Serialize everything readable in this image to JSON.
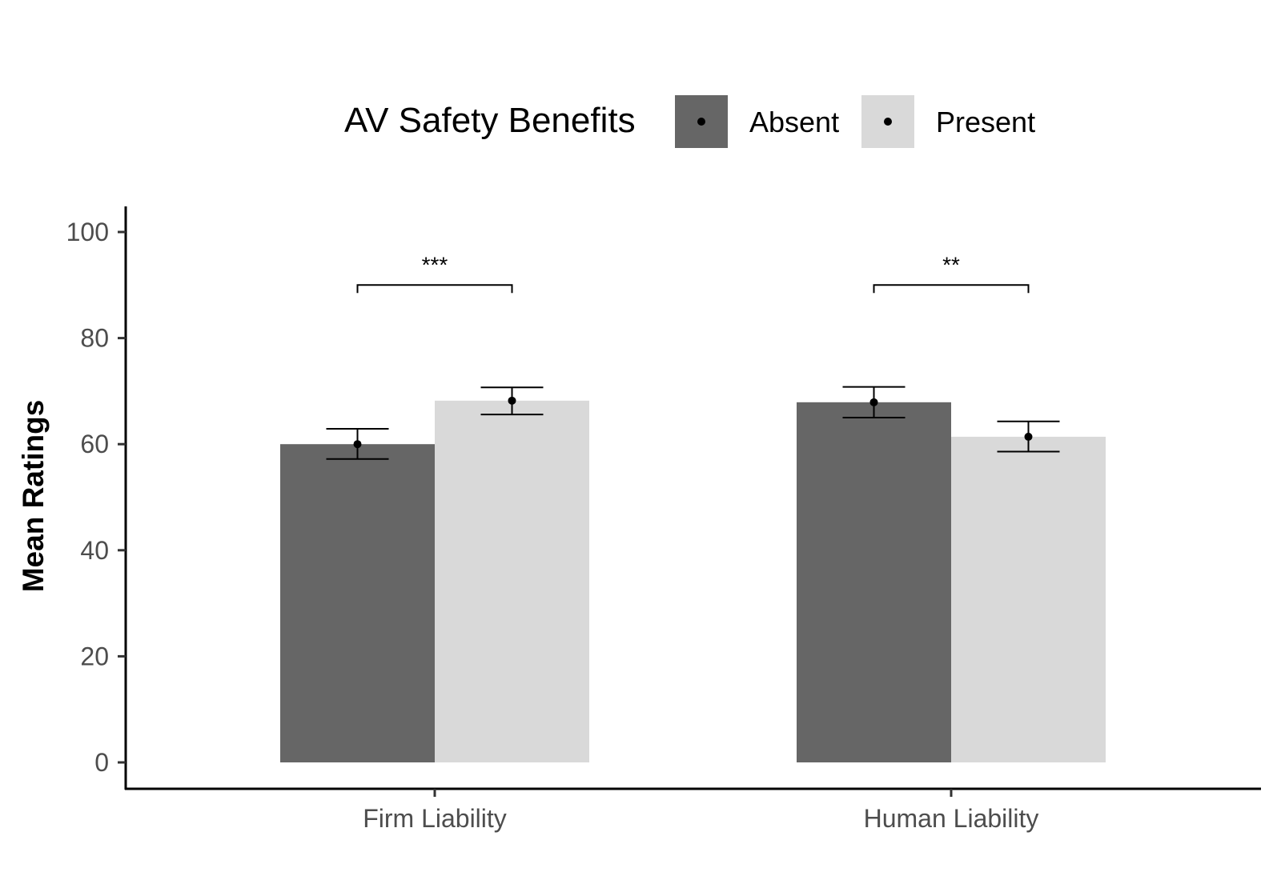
{
  "chart_data": {
    "type": "bar",
    "title": "",
    "xlabel": "",
    "ylabel": "Mean Ratings",
    "ylim": [
      0,
      100
    ],
    "yticks": [
      0,
      20,
      40,
      60,
      80,
      100
    ],
    "categories": [
      "Firm Liability",
      "Human Liability"
    ],
    "legend": {
      "title": "AV Safety Benefits",
      "position": "top"
    },
    "series": [
      {
        "name": "Absent",
        "color": "#666666",
        "values": [
          60.0,
          67.9
        ],
        "error_low": [
          57.2,
          65.0
        ],
        "error_high": [
          62.9,
          70.8
        ]
      },
      {
        "name": "Present",
        "color": "#d9d9d9",
        "values": [
          68.2,
          61.4
        ],
        "error_low": [
          65.6,
          58.6
        ],
        "error_high": [
          70.7,
          64.3
        ]
      }
    ],
    "significance": [
      {
        "category": "Firm Liability",
        "label": "***",
        "y": 90
      },
      {
        "category": "Human Liability",
        "label": "**",
        "y": 90
      }
    ]
  }
}
